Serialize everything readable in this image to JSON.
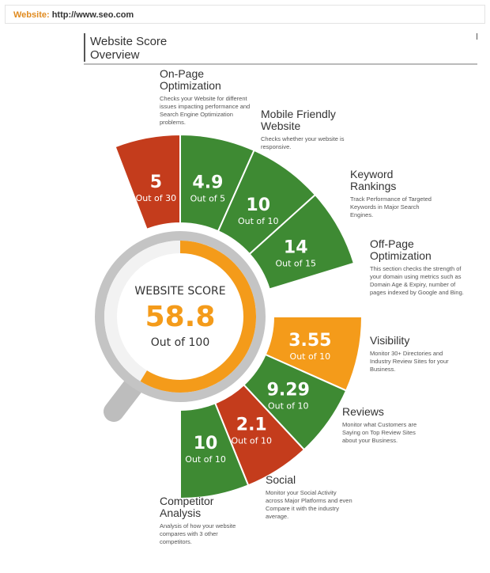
{
  "topbar": {
    "label": "Website:",
    "url": "http://www.seo.com"
  },
  "header": {
    "title": "Website Score\nOverview"
  },
  "score": {
    "label": "WEBSITE SCORE",
    "value": "58.8",
    "out_of": "Out of 100"
  },
  "colors": {
    "red": "#c43c1c",
    "green": "#3e8a33",
    "orange": "#f49b1a",
    "gray": "#bdbdbd"
  },
  "segments": [
    {
      "name": "On-Page Optimization",
      "value": "5",
      "out_of": "Out of 30",
      "color": "red",
      "title": "On-Page\nOptimization",
      "desc": "Checks your Website for different issues impacting performance and Search Engine Optimization problems."
    },
    {
      "name": "Mobile Friendly Website",
      "value": "4.9",
      "out_of": "Out of 5",
      "color": "green",
      "title": "Mobile Friendly\nWebsite",
      "desc": "Checks whether your website is responsive."
    },
    {
      "name": "Keyword Rankings",
      "value": "10",
      "out_of": "Out of 10",
      "color": "green",
      "title": "Keyword\nRankings",
      "desc": "Track Performance of Targeted Keywords in Major Search Engines."
    },
    {
      "name": "Off-Page Optimization",
      "value": "14",
      "out_of": "Out of 15",
      "color": "green",
      "title": "Off-Page\nOptimization",
      "desc": "This section checks the strength of your domain using metrics such as Domain Age & Expiry, number of pages indexed by Google and Bing."
    },
    {
      "name": "Visibility",
      "value": "3.55",
      "out_of": "Out of 10",
      "color": "orange",
      "title": "Visibility",
      "desc": "Monitor 30+ Directories and Industry Review Sites for your Business."
    },
    {
      "name": "Reviews",
      "value": "9.29",
      "out_of": "Out of 10",
      "color": "green",
      "title": "Reviews",
      "desc": "Monitor what Customers are Saying on Top Review Sites about your Business."
    },
    {
      "name": "Social",
      "value": "2.1",
      "out_of": "Out of 10",
      "color": "red",
      "title": "Social",
      "desc": "Monitor your Social Activity across Major Platforms and even Compare it with the industry average."
    },
    {
      "name": "Competitor Analysis",
      "value": "10",
      "out_of": "Out of 10",
      "color": "green",
      "title": "Competitor\nAnalysis",
      "desc": "Analysis of how your website compares with 3 other competitors."
    }
  ]
}
